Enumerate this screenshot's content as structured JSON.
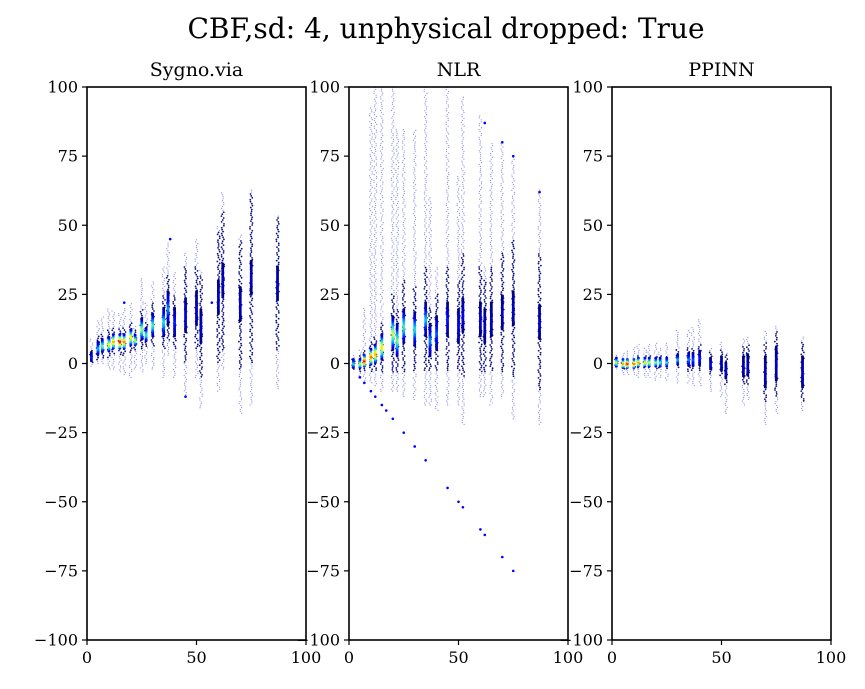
{
  "figure_title": "CBF,sd: 4, unphysical dropped: True",
  "colors": {
    "axes": "#000000",
    "sparse_points": "#0000cc",
    "dense_points": "#000080",
    "colormap": [
      "#00007f",
      "#0000ff",
      "#00bfff",
      "#7fff7f",
      "#ffff00",
      "#ff7f00",
      "#ff0000"
    ]
  },
  "chart_data": [
    {
      "type": "scatter",
      "title": "Sygno.via",
      "xlim": [
        0,
        100
      ],
      "ylim": [
        -100,
        100
      ],
      "xticks": [
        "0",
        "50",
        "100"
      ],
      "yticks": [
        "100",
        "75",
        "50",
        "25",
        "0",
        "−25",
        "−50",
        "−75",
        "−100"
      ],
      "grid": false,
      "columns": [
        {
          "x": 2,
          "ymin": -1,
          "ymax": 9,
          "core": [
            0,
            5
          ],
          "peak": 0.2
        },
        {
          "x": 5,
          "ymin": 0,
          "ymax": 16,
          "core": [
            1,
            10
          ],
          "peak": 0.35
        },
        {
          "x": 7,
          "ymin": 0,
          "ymax": 17,
          "core": [
            2,
            11
          ],
          "peak": 0.5
        },
        {
          "x": 10,
          "ymin": -2,
          "ymax": 20,
          "core": [
            2,
            12
          ],
          "peak": 0.65
        },
        {
          "x": 12,
          "ymin": -2,
          "ymax": 19,
          "core": [
            3,
            13
          ],
          "peak": 0.8
        },
        {
          "x": 15,
          "ymin": -3,
          "ymax": 18,
          "core": [
            3,
            13
          ],
          "peak": 1.0
        },
        {
          "x": 17,
          "ymin": -4,
          "ymax": 20,
          "core": [
            3,
            13
          ],
          "peak": 0.85
        },
        {
          "x": 20,
          "ymin": -5,
          "ymax": 22,
          "core": [
            4,
            15
          ],
          "peak": 0.7
        },
        {
          "x": 22,
          "ymin": -2,
          "ymax": 14,
          "core": [
            5,
            12
          ],
          "peak": 0.6
        },
        {
          "x": 25,
          "ymin": -3,
          "ymax": 31,
          "core": [
            5,
            20
          ],
          "peak": 0.55
        },
        {
          "x": 27,
          "ymin": 0,
          "ymax": 22,
          "core": [
            6,
            15
          ],
          "peak": 0.45
        },
        {
          "x": 30,
          "ymin": -2,
          "ymax": 30,
          "core": [
            6,
            22
          ],
          "peak": 0.45
        },
        {
          "x": 35,
          "ymin": -5,
          "ymax": 35,
          "core": [
            5,
            25
          ],
          "peak": 0.4
        },
        {
          "x": 37,
          "ymin": 3,
          "ymax": 44,
          "core": [
            8,
            32
          ],
          "peak": 0.3
        },
        {
          "x": 40,
          "ymin": -5,
          "ymax": 33,
          "core": [
            5,
            25
          ],
          "peak": 0.2
        },
        {
          "x": 45,
          "ymin": -12,
          "ymax": 40,
          "core": [
            0,
            35
          ],
          "peak": 0.15
        },
        {
          "x": 50,
          "ymin": -5,
          "ymax": 45,
          "core": [
            5,
            35
          ],
          "peak": 0.1
        },
        {
          "x": 52,
          "ymin": -16,
          "ymax": 34,
          "core": [
            -5,
            32
          ],
          "peak": 0.1
        },
        {
          "x": 60,
          "ymin": -10,
          "ymax": 50,
          "core": [
            0,
            48
          ],
          "peak": 0.1
        },
        {
          "x": 62,
          "ymin": -2,
          "ymax": 62,
          "core": [
            5,
            55
          ],
          "peak": 0.1
        },
        {
          "x": 70,
          "ymin": -18,
          "ymax": 47,
          "core": [
            -2,
            45
          ],
          "peak": 0.1
        },
        {
          "x": 75,
          "ymin": -15,
          "ymax": 63,
          "core": [
            0,
            62
          ],
          "peak": 0.1
        },
        {
          "x": 87,
          "ymin": -9,
          "ymax": 54,
          "core": [
            5,
            53
          ],
          "peak": 0.1
        }
      ],
      "outliers": [
        [
          17,
          22
        ],
        [
          38,
          45
        ],
        [
          45,
          -12
        ],
        [
          57,
          22
        ]
      ]
    },
    {
      "type": "scatter",
      "title": "NLR",
      "xlim": [
        0,
        100
      ],
      "ylim": [
        -100,
        100
      ],
      "xticks": [
        "0",
        "50",
        "100"
      ],
      "yticks": [
        "100",
        "75",
        "50",
        "25",
        "0",
        "−25",
        "−50",
        "−75",
        "−100"
      ],
      "grid": false,
      "columns": [
        {
          "x": 2,
          "ymin": -2,
          "ymax": 3,
          "core": [
            -2,
            2
          ],
          "peak": 0.4
        },
        {
          "x": 5,
          "ymin": -5,
          "ymax": 5,
          "core": [
            -3,
            3
          ],
          "peak": 0.6
        },
        {
          "x": 7,
          "ymin": -6,
          "ymax": 20,
          "core": [
            -3,
            5
          ],
          "peak": 1.0
        },
        {
          "x": 10,
          "ymin": -7,
          "ymax": 93,
          "core": [
            -3,
            8
          ],
          "peak": 0.9
        },
        {
          "x": 12,
          "ymin": -8,
          "ymax": 100,
          "core": [
            -3,
            10
          ],
          "peak": 0.8
        },
        {
          "x": 15,
          "ymin": -10,
          "ymax": 100,
          "core": [
            -3,
            15
          ],
          "peak": 0.7
        },
        {
          "x": 20,
          "ymin": -10,
          "ymax": 100,
          "core": [
            -3,
            25
          ],
          "peak": 0.6
        },
        {
          "x": 22,
          "ymin": -10,
          "ymax": 85,
          "core": [
            -3,
            20
          ],
          "peak": 0.5
        },
        {
          "x": 25,
          "ymin": -12,
          "ymax": 85,
          "core": [
            -3,
            30
          ],
          "peak": 0.45
        },
        {
          "x": 30,
          "ymin": -13,
          "ymax": 85,
          "core": [
            -3,
            28
          ],
          "peak": 0.4
        },
        {
          "x": 35,
          "ymin": -15,
          "ymax": 100,
          "core": [
            -3,
            35
          ],
          "peak": 0.35
        },
        {
          "x": 37,
          "ymin": -15,
          "ymax": 60,
          "core": [
            -3,
            20
          ],
          "peak": 0.3
        },
        {
          "x": 40,
          "ymin": -17,
          "ymax": 35,
          "core": [
            -3,
            25
          ],
          "peak": 0.25
        },
        {
          "x": 45,
          "ymin": -15,
          "ymax": 100,
          "core": [
            -3,
            35
          ],
          "peak": 0.2
        },
        {
          "x": 50,
          "ymin": -15,
          "ymax": 68,
          "core": [
            -3,
            30
          ],
          "peak": 0.15
        },
        {
          "x": 52,
          "ymin": -22,
          "ymax": 97,
          "core": [
            -5,
            40
          ],
          "peak": 0.15
        },
        {
          "x": 60,
          "ymin": -12,
          "ymax": 90,
          "core": [
            -3,
            35
          ],
          "peak": 0.1
        },
        {
          "x": 62,
          "ymin": -12,
          "ymax": 35,
          "core": [
            -3,
            30
          ],
          "peak": 0.1
        },
        {
          "x": 65,
          "ymin": -15,
          "ymax": 80,
          "core": [
            -3,
            35
          ],
          "peak": 0.1
        },
        {
          "x": 70,
          "ymin": -12,
          "ymax": 80,
          "core": [
            -3,
            40
          ],
          "peak": 0.1
        },
        {
          "x": 75,
          "ymin": -20,
          "ymax": 75,
          "core": [
            -5,
            45
          ],
          "peak": 0.1
        },
        {
          "x": 87,
          "ymin": -22,
          "ymax": 63,
          "core": [
            -10,
            40
          ],
          "peak": 0.1
        }
      ],
      "outliers": [
        [
          5,
          -5
        ],
        [
          7,
          -7
        ],
        [
          10,
          -10
        ],
        [
          12,
          -12
        ],
        [
          15,
          -15
        ],
        [
          17,
          -17
        ],
        [
          20,
          -20
        ],
        [
          25,
          -25
        ],
        [
          30,
          -30
        ],
        [
          35,
          -35
        ],
        [
          45,
          -45
        ],
        [
          50,
          -50
        ],
        [
          52,
          -52
        ],
        [
          60,
          -60
        ],
        [
          62,
          -62
        ],
        [
          70,
          -70
        ],
        [
          75,
          -75
        ],
        [
          62,
          87
        ],
        [
          70,
          80
        ],
        [
          75,
          75
        ],
        [
          87,
          62
        ]
      ]
    },
    {
      "type": "scatter",
      "title": "PPINN",
      "xlim": [
        0,
        100
      ],
      "ylim": [
        -100,
        100
      ],
      "xticks": [
        "0",
        "50",
        "100"
      ],
      "yticks": [
        "100",
        "75",
        "50",
        "25",
        "0",
        "−25",
        "−50",
        "−75",
        "−100"
      ],
      "grid": false,
      "columns": [
        {
          "x": 2,
          "ymin": -2,
          "ymax": 3,
          "core": [
            -1,
            2
          ],
          "peak": 0.6
        },
        {
          "x": 5,
          "ymin": -4,
          "ymax": 4,
          "core": [
            -2,
            2
          ],
          "peak": 0.8
        },
        {
          "x": 7,
          "ymin": -4,
          "ymax": 5,
          "core": [
            -2,
            2
          ],
          "peak": 1.0
        },
        {
          "x": 10,
          "ymin": -4,
          "ymax": 6,
          "core": [
            -2,
            2
          ],
          "peak": 0.9
        },
        {
          "x": 12,
          "ymin": -5,
          "ymax": 7,
          "core": [
            -2,
            3
          ],
          "peak": 0.8
        },
        {
          "x": 15,
          "ymin": -5,
          "ymax": 6,
          "core": [
            -2,
            3
          ],
          "peak": 0.7
        },
        {
          "x": 17,
          "ymin": -5,
          "ymax": 7,
          "core": [
            -2,
            3
          ],
          "peak": 0.6
        },
        {
          "x": 20,
          "ymin": -6,
          "ymax": 8,
          "core": [
            -2,
            3
          ],
          "peak": 0.5
        },
        {
          "x": 22,
          "ymin": -5,
          "ymax": 6,
          "core": [
            -2,
            3
          ],
          "peak": 0.45
        },
        {
          "x": 25,
          "ymin": -6,
          "ymax": 8,
          "core": [
            -2,
            3
          ],
          "peak": 0.4
        },
        {
          "x": 30,
          "ymin": -7,
          "ymax": 12,
          "core": [
            -2,
            5
          ],
          "peak": 0.35
        },
        {
          "x": 35,
          "ymin": -7,
          "ymax": 12,
          "core": [
            -3,
            6
          ],
          "peak": 0.3
        },
        {
          "x": 37,
          "ymin": -8,
          "ymax": 13,
          "core": [
            -3,
            6
          ],
          "peak": 0.25
        },
        {
          "x": 40,
          "ymin": -8,
          "ymax": 16,
          "core": [
            -3,
            7
          ],
          "peak": 0.2
        },
        {
          "x": 45,
          "ymin": -10,
          "ymax": 6,
          "core": [
            -4,
            4
          ],
          "peak": 0.15
        },
        {
          "x": 50,
          "ymin": -12,
          "ymax": 8,
          "core": [
            -5,
            5
          ],
          "peak": 0.1
        },
        {
          "x": 52,
          "ymin": -18,
          "ymax": 4,
          "core": [
            -8,
            3
          ],
          "peak": 0.1
        },
        {
          "x": 60,
          "ymin": -15,
          "ymax": 9,
          "core": [
            -8,
            6
          ],
          "peak": 0.1
        },
        {
          "x": 62,
          "ymin": -13,
          "ymax": 10,
          "core": [
            -8,
            7
          ],
          "peak": 0.1
        },
        {
          "x": 70,
          "ymin": -22,
          "ymax": 12,
          "core": [
            -14,
            8
          ],
          "peak": 0.1
        },
        {
          "x": 75,
          "ymin": -18,
          "ymax": 14,
          "core": [
            -12,
            12
          ],
          "peak": 0.1
        },
        {
          "x": 87,
          "ymin": -17,
          "ymax": 10,
          "core": [
            -14,
            8
          ],
          "peak": 0.1
        }
      ],
      "outliers": []
    }
  ]
}
